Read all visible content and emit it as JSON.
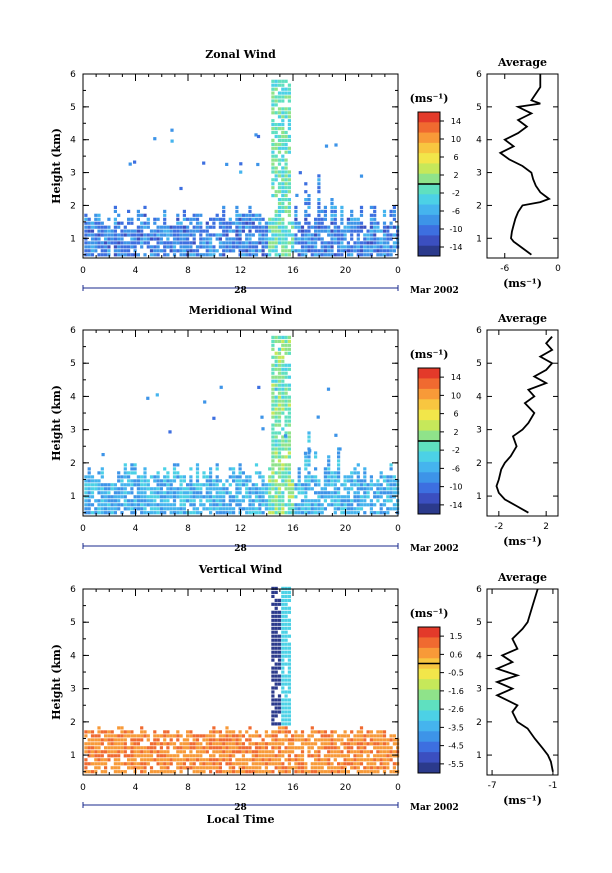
{
  "chart_data": [
    {
      "type": "heatmap",
      "title": "Zonal Wind",
      "ylabel": "Height (km)",
      "xticks": [
        "0",
        "4",
        "8",
        "12",
        "16",
        "20",
        "0"
      ],
      "yticks": [
        "1",
        "2",
        "3",
        "4",
        "5",
        "6"
      ],
      "ylim": [
        0.4,
        6
      ],
      "xlim": [
        0,
        24
      ],
      "date_label": "28",
      "month_label": "Mar 2002",
      "colorbar": {
        "unit": "(ms⁻¹)",
        "ticks": [
          "14",
          "10",
          "6",
          "2",
          "-2",
          "-6",
          "-10",
          "-14"
        ],
        "min": -16,
        "max": 16
      },
      "profile": {
        "title": "Average",
        "xlabel": "(ms⁻¹)",
        "xticks": [
          "-6",
          "0"
        ],
        "xlim": [
          -8,
          0
        ],
        "height": [
          0.5,
          0.6,
          0.7,
          0.8,
          0.9,
          1.0,
          1.2,
          1.4,
          1.6,
          1.8,
          2.0,
          2.1,
          2.2,
          2.3,
          2.4,
          2.6,
          2.8,
          3.0,
          3.2,
          3.4,
          3.6,
          3.8,
          4.0,
          4.2,
          4.4,
          4.6,
          4.8,
          5.0,
          5.1,
          5.2,
          5.4,
          5.6,
          5.8,
          6.0
        ],
        "values": [
          -3.0,
          -3.5,
          -4.0,
          -4.5,
          -5.0,
          -5.3,
          -5.2,
          -5.0,
          -4.8,
          -4.5,
          -4.0,
          -2.0,
          -1.0,
          -1.5,
          -2.0,
          -2.5,
          -2.8,
          -3.0,
          -4.0,
          -5.5,
          -6.5,
          -5.0,
          -6.0,
          -4.5,
          -3.5,
          -4.5,
          -3.0,
          -4.5,
          -2.0,
          -3.0,
          -2.5,
          -2.0,
          -2.0,
          -2.0
        ]
      }
    },
    {
      "type": "heatmap",
      "title": "Meridional Wind",
      "ylabel": "Height (km)",
      "xticks": [
        "0",
        "4",
        "8",
        "12",
        "16",
        "20",
        "0"
      ],
      "yticks": [
        "1",
        "2",
        "3",
        "4",
        "5",
        "6"
      ],
      "ylim": [
        0.4,
        6
      ],
      "xlim": [
        0,
        24
      ],
      "date_label": "28",
      "month_label": "Mar 2002",
      "colorbar": {
        "unit": "(ms⁻¹)",
        "ticks": [
          "14",
          "10",
          "6",
          "2",
          "-2",
          "-6",
          "-10",
          "-14"
        ],
        "min": -16,
        "max": 16
      },
      "profile": {
        "title": "Average",
        "xlabel": "(ms⁻¹)",
        "xticks": [
          "-2",
          "2"
        ],
        "xlim": [
          -3,
          3
        ],
        "height": [
          0.5,
          0.7,
          0.9,
          1.1,
          1.3,
          1.5,
          1.8,
          2.0,
          2.2,
          2.5,
          2.8,
          3.0,
          3.2,
          3.5,
          3.8,
          4.0,
          4.2,
          4.4,
          4.6,
          4.8,
          5.0,
          5.2,
          5.4,
          5.6,
          5.8
        ],
        "values": [
          0.5,
          -0.5,
          -1.5,
          -2.0,
          -2.2,
          -2.0,
          -1.8,
          -1.5,
          -1.0,
          -0.5,
          -0.8,
          0.0,
          0.5,
          1.0,
          0.2,
          1.0,
          0.5,
          2.0,
          1.0,
          2.0,
          2.5,
          1.5,
          2.5,
          2.0,
          2.5
        ]
      }
    },
    {
      "type": "heatmap",
      "title": "Vertical Wind",
      "ylabel": "Height (km)",
      "xlabel": "Local Time",
      "xticks": [
        "0",
        "4",
        "8",
        "12",
        "16",
        "20",
        "0"
      ],
      "yticks": [
        "1",
        "2",
        "3",
        "4",
        "5",
        "6"
      ],
      "ylim": [
        0.4,
        6
      ],
      "xlim": [
        0,
        24
      ],
      "date_label": "28",
      "month_label": "Mar 2002",
      "colorbar": {
        "unit": "(ms⁻¹)",
        "ticks": [
          "1.5",
          "0.6",
          "-0.5",
          "-1.6",
          "-2.6",
          "-3.5",
          "-4.5",
          "-5.5"
        ],
        "min": -6,
        "max": 2
      },
      "profile": {
        "title": "Average",
        "xlabel": "(ms⁻¹)",
        "xticks": [
          "-7",
          "-1"
        ],
        "xlim": [
          -7.5,
          -0.5
        ],
        "height": [
          0.5,
          0.8,
          1.0,
          1.2,
          1.5,
          1.8,
          2.0,
          2.3,
          2.5,
          2.8,
          3.0,
          3.2,
          3.4,
          3.6,
          3.8,
          4.0,
          4.2,
          4.5,
          4.8,
          5.0,
          5.5,
          6.0
        ],
        "values": [
          -1.0,
          -1.2,
          -1.5,
          -2.0,
          -2.8,
          -3.5,
          -4.5,
          -5.0,
          -4.5,
          -6.5,
          -5.0,
          -6.5,
          -4.5,
          -6.5,
          -5.0,
          -6.0,
          -4.5,
          -5.0,
          -4.0,
          -3.5,
          -3.0,
          -2.5
        ]
      }
    }
  ]
}
